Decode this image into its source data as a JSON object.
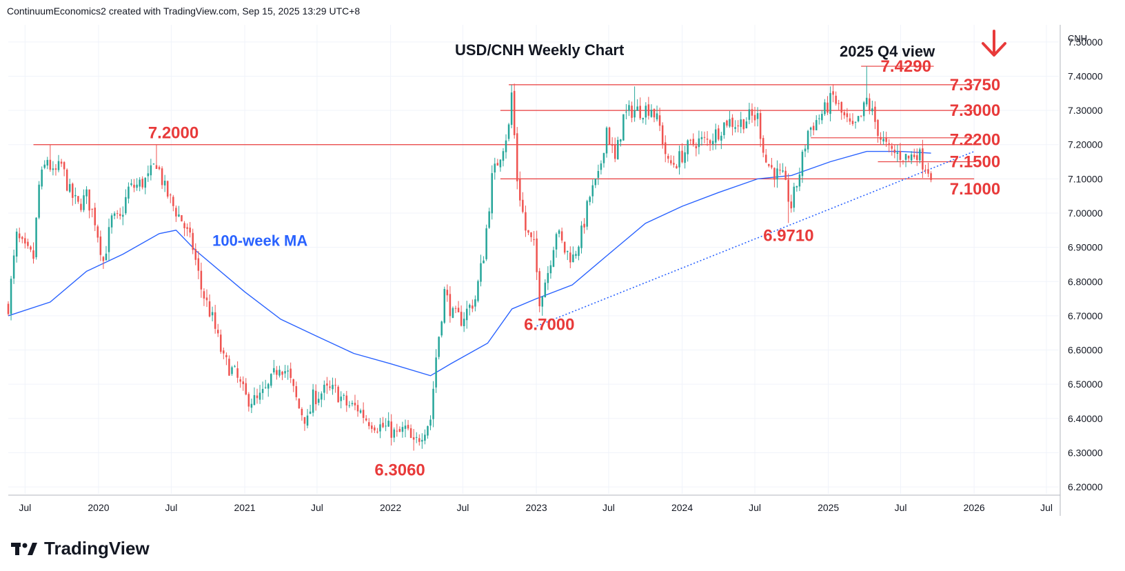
{
  "header": {
    "credit": "ContinuumEconomics2 created with TradingView.com, Sep 15, 2025 13:29 UTC+8"
  },
  "footer": {
    "brand": "TradingView"
  },
  "colors": {
    "up": "#26a69a",
    "down": "#ef5350",
    "level": "#e83a3a",
    "ma": "#2962ff",
    "text": "#131722",
    "grid": "#f0f3fa"
  },
  "chart_data": {
    "type": "candlestick",
    "title": "USD/CNH Weekly Chart",
    "subtitle": "2025 Q4 view",
    "outlook_icon": "arrow-down-icon",
    "currency_label": "CNH",
    "y_ticks": [
      "6.20000",
      "6.30000",
      "6.40000",
      "6.50000",
      "6.60000",
      "6.70000",
      "6.80000",
      "6.90000",
      "7.00000",
      "7.10000",
      "7.20000",
      "7.30000",
      "7.40000",
      "7.50000"
    ],
    "ylim": [
      6.18,
      7.55
    ],
    "xlim": [
      "2019-05-20",
      "2026-08-01"
    ],
    "x_ticks": [
      {
        "label": "Jul",
        "date": "2019-07-01"
      },
      {
        "label": "2020",
        "date": "2020-01-01"
      },
      {
        "label": "Jul",
        "date": "2020-07-01"
      },
      {
        "label": "2021",
        "date": "2021-01-01"
      },
      {
        "label": "Jul",
        "date": "2021-07-01"
      },
      {
        "label": "2022",
        "date": "2022-01-01"
      },
      {
        "label": "Jul",
        "date": "2022-07-01"
      },
      {
        "label": "2023",
        "date": "2023-01-01"
      },
      {
        "label": "Jul",
        "date": "2023-07-01"
      },
      {
        "label": "2024",
        "date": "2024-01-01"
      },
      {
        "label": "Jul",
        "date": "2024-07-01"
      },
      {
        "label": "2025",
        "date": "2025-01-01"
      },
      {
        "label": "Jul",
        "date": "2025-07-01"
      },
      {
        "label": "2026",
        "date": "2026-01-01"
      },
      {
        "label": "Jul",
        "date": "2026-07-01"
      }
    ],
    "close_path": [
      [
        "2019-05-20",
        6.73
      ],
      [
        "2019-06-10",
        6.93
      ],
      [
        "2019-07-01",
        6.89
      ],
      [
        "2019-07-22",
        6.87
      ],
      [
        "2019-08-05",
        7.08
      ],
      [
        "2019-08-26",
        7.16
      ],
      [
        "2019-09-09",
        7.11
      ],
      [
        "2019-09-30",
        7.14
      ],
      [
        "2019-10-21",
        7.06
      ],
      [
        "2019-11-11",
        7.02
      ],
      [
        "2019-12-02",
        7.05
      ],
      [
        "2019-12-23",
        6.98
      ],
      [
        "2020-01-13",
        6.86
      ],
      [
        "2020-02-03",
        6.98
      ],
      [
        "2020-02-24",
        6.98
      ],
      [
        "2020-03-16",
        7.07
      ],
      [
        "2020-04-06",
        7.08
      ],
      [
        "2020-05-04",
        7.1
      ],
      [
        "2020-05-25",
        7.15
      ],
      [
        "2020-06-15",
        7.07
      ],
      [
        "2020-07-06",
        7.02
      ],
      [
        "2020-07-27",
        6.98
      ],
      [
        "2020-08-24",
        6.9
      ],
      [
        "2020-09-14",
        6.78
      ],
      [
        "2020-10-12",
        6.69
      ],
      [
        "2020-11-09",
        6.57
      ],
      [
        "2020-12-07",
        6.53
      ],
      [
        "2021-01-04",
        6.46
      ],
      [
        "2021-02-01",
        6.45
      ],
      [
        "2021-03-01",
        6.49
      ],
      [
        "2021-03-29",
        6.56
      ],
      [
        "2021-04-19",
        6.53
      ],
      [
        "2021-05-17",
        6.43
      ],
      [
        "2021-06-07",
        6.39
      ],
      [
        "2021-06-21",
        6.46
      ],
      [
        "2021-07-19",
        6.48
      ],
      [
        "2021-08-16",
        6.48
      ],
      [
        "2021-09-13",
        6.44
      ],
      [
        "2021-10-11",
        6.43
      ],
      [
        "2021-11-01",
        6.4
      ],
      [
        "2021-11-29",
        6.38
      ],
      [
        "2021-12-27",
        6.37
      ],
      [
        "2022-01-17",
        6.35
      ],
      [
        "2022-02-07",
        6.37
      ],
      [
        "2022-02-28",
        6.32
      ],
      [
        "2022-03-21",
        6.36
      ],
      [
        "2022-04-11",
        6.4
      ],
      [
        "2022-04-25",
        6.58
      ],
      [
        "2022-05-16",
        6.77
      ],
      [
        "2022-06-06",
        6.7
      ],
      [
        "2022-06-27",
        6.69
      ],
      [
        "2022-08-01",
        6.75
      ],
      [
        "2022-08-22",
        6.88
      ],
      [
        "2022-09-12",
        7.1
      ],
      [
        "2022-09-26",
        7.15
      ],
      [
        "2022-10-24",
        7.25
      ],
      [
        "2022-10-31",
        7.35
      ],
      [
        "2022-11-14",
        7.1
      ],
      [
        "2022-12-05",
        6.95
      ],
      [
        "2022-12-26",
        6.9
      ],
      [
        "2023-01-09",
        6.75
      ],
      [
        "2023-01-30",
        6.83
      ],
      [
        "2023-02-20",
        6.95
      ],
      [
        "2023-03-13",
        6.89
      ],
      [
        "2023-04-03",
        6.87
      ],
      [
        "2023-04-24",
        6.94
      ],
      [
        "2023-05-15",
        7.05
      ],
      [
        "2023-06-05",
        7.1
      ],
      [
        "2023-06-26",
        7.25
      ],
      [
        "2023-07-17",
        7.15
      ],
      [
        "2023-08-07",
        7.28
      ],
      [
        "2023-08-28",
        7.3
      ],
      [
        "2023-09-18",
        7.3
      ],
      [
        "2023-10-16",
        7.31
      ],
      [
        "2023-11-06",
        7.25
      ],
      [
        "2023-11-27",
        7.14
      ],
      [
        "2023-12-18",
        7.15
      ],
      [
        "2024-01-15",
        7.19
      ],
      [
        "2024-02-05",
        7.21
      ],
      [
        "2024-03-04",
        7.21
      ],
      [
        "2024-04-01",
        7.24
      ],
      [
        "2024-04-22",
        7.27
      ],
      [
        "2024-05-20",
        7.26
      ],
      [
        "2024-06-17",
        7.28
      ],
      [
        "2024-07-08",
        7.28
      ],
      [
        "2024-07-29",
        7.15
      ],
      [
        "2024-08-19",
        7.12
      ],
      [
        "2024-09-09",
        7.1
      ],
      [
        "2024-09-30",
        7.02
      ],
      [
        "2024-10-21",
        7.12
      ],
      [
        "2024-11-11",
        7.24
      ],
      [
        "2024-12-02",
        7.27
      ],
      [
        "2024-12-23",
        7.3
      ],
      [
        "2025-01-13",
        7.34
      ],
      [
        "2025-02-03",
        7.29
      ],
      [
        "2025-03-03",
        7.24
      ],
      [
        "2025-03-24",
        7.28
      ],
      [
        "2025-04-07",
        7.33
      ],
      [
        "2025-04-21",
        7.29
      ],
      [
        "2025-05-12",
        7.22
      ],
      [
        "2025-06-02",
        7.18
      ],
      [
        "2025-06-30",
        7.17
      ],
      [
        "2025-07-21",
        7.16
      ],
      [
        "2025-08-11",
        7.18
      ],
      [
        "2025-08-25",
        7.15
      ],
      [
        "2025-09-15",
        7.12
      ]
    ],
    "extremes": [
      [
        "2019-09-02",
        "high",
        7.2
      ],
      [
        "2020-01-13",
        "low",
        6.85
      ],
      [
        "2020-05-25",
        "high",
        7.2
      ],
      [
        "2022-02-28",
        "low",
        6.306
      ],
      [
        "2022-10-31",
        "high",
        7.375
      ],
      [
        "2023-01-16",
        "low",
        6.7
      ],
      [
        "2023-09-04",
        "high",
        7.37
      ],
      [
        "2024-09-23",
        "low",
        6.971
      ],
      [
        "2025-01-06",
        "high",
        7.37
      ],
      [
        "2025-04-07",
        "high",
        7.429
      ],
      [
        "2025-09-08",
        "low",
        7.118
      ]
    ],
    "ma_100": [
      [
        "2019-05-20",
        6.7
      ],
      [
        "2019-09-02",
        6.74
      ],
      [
        "2019-12-02",
        6.83
      ],
      [
        "2020-03-02",
        6.88
      ],
      [
        "2020-06-01",
        6.94
      ],
      [
        "2020-07-13",
        6.95
      ],
      [
        "2020-09-01",
        6.89
      ],
      [
        "2021-01-01",
        6.77
      ],
      [
        "2021-04-01",
        6.69
      ],
      [
        "2021-07-01",
        6.64
      ],
      [
        "2021-10-01",
        6.59
      ],
      [
        "2022-01-01",
        6.56
      ],
      [
        "2022-04-11",
        6.525
      ],
      [
        "2022-06-01",
        6.56
      ],
      [
        "2022-09-01",
        6.62
      ],
      [
        "2022-11-01",
        6.72
      ],
      [
        "2023-01-01",
        6.75
      ],
      [
        "2023-04-01",
        6.79
      ],
      [
        "2023-07-01",
        6.88
      ],
      [
        "2023-10-01",
        6.97
      ],
      [
        "2024-01-01",
        7.02
      ],
      [
        "2024-04-01",
        7.06
      ],
      [
        "2024-07-08",
        7.1
      ],
      [
        "2024-10-01",
        7.11
      ],
      [
        "2025-01-06",
        7.15
      ],
      [
        "2025-04-07",
        7.18
      ],
      [
        "2025-07-01",
        7.18
      ],
      [
        "2025-09-15",
        7.175
      ]
    ],
    "trendline": {
      "from": [
        "2023-01-02",
        6.67
      ],
      "to": [
        "2026-01-01",
        7.18
      ],
      "style": "dotted"
    },
    "levels": [
      {
        "label": "7.4290",
        "value": 7.429,
        "from": "2025-03-24",
        "to": "2025-09-22"
      },
      {
        "label": "7.3750",
        "value": 7.375,
        "from": "2022-10-24",
        "to": "2026-01-01"
      },
      {
        "label": "7.3000",
        "value": 7.3,
        "from": "2022-10-03",
        "to": "2026-01-01"
      },
      {
        "label": "7.2200",
        "value": 7.22,
        "from": "2024-11-18",
        "to": "2026-01-01"
      },
      {
        "label": "7.2000",
        "value": 7.2,
        "from": "2019-07-22",
        "to": "2026-01-01"
      },
      {
        "label": "7.1500",
        "value": 7.15,
        "from": "2025-05-05",
        "to": "2026-01-01"
      },
      {
        "label": "7.1000",
        "value": 7.1,
        "from": "2022-10-03",
        "to": "2026-01-01"
      }
    ],
    "annotations": [
      {
        "label": "7.4290",
        "date": "2025-05-12",
        "value": 7.429
      },
      {
        "label": "7.3750",
        "date": "2025-11-01",
        "value": 7.375
      },
      {
        "label": "7.3000",
        "date": "2025-11-01",
        "value": 7.3
      },
      {
        "label": "7.2200",
        "date": "2025-11-01",
        "value": 7.215
      },
      {
        "label": "7.2000",
        "date": "2020-05-04",
        "value": 7.235
      },
      {
        "label": "7.1500",
        "date": "2025-11-01",
        "value": 7.15
      },
      {
        "label": "7.1000",
        "date": "2025-11-01",
        "value": 7.07
      },
      {
        "label": "6.9710",
        "date": "2024-07-22",
        "value": 6.935
      },
      {
        "label": "6.7000",
        "date": "2022-12-01",
        "value": 6.675
      },
      {
        "label": "6.3060",
        "date": "2021-11-22",
        "value": 6.25
      },
      {
        "label": "100-week MA",
        "date": "2020-10-12",
        "value": 6.92
      }
    ]
  }
}
